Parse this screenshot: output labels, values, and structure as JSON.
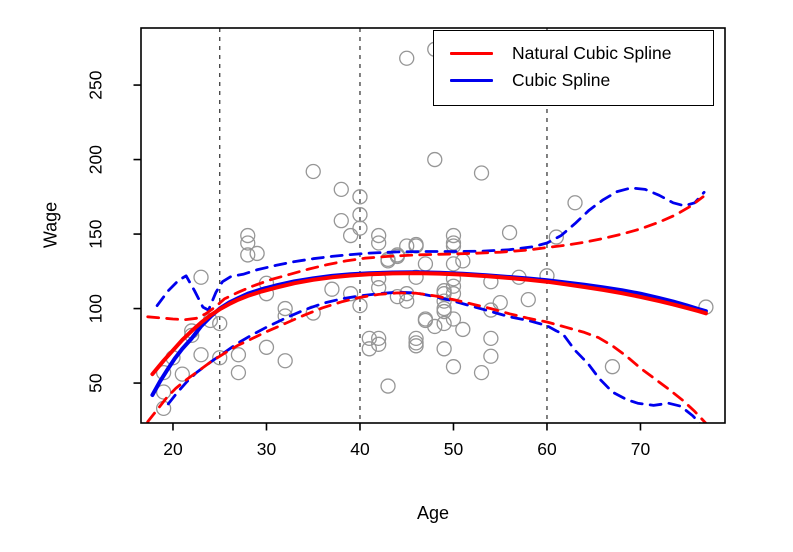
{
  "chart_data": {
    "type": "scatter",
    "title": "",
    "xlabel": "Age",
    "ylabel": "Wage",
    "xlim": [
      16.58,
      79.04
    ],
    "ylim": [
      23.2,
      288.3
    ],
    "x_ticks": [
      20,
      30,
      40,
      50,
      60,
      70
    ],
    "y_ticks": [
      50,
      100,
      150,
      200,
      250
    ],
    "knot_lines_x": [
      25,
      40,
      60
    ],
    "grid": "off",
    "colors": {
      "natural_spline": "#ff0000",
      "cubic_spline": "#0000ee",
      "points": "#969696",
      "knot_lines": "#3c3c3c",
      "axis": "#000000",
      "background": "#ffffff"
    },
    "legend": {
      "position": "top-right",
      "entries": [
        {
          "label": "Natural Cubic Spline",
          "color": "#ff0000"
        },
        {
          "label": "Cubic Spline",
          "color": "#0000ee"
        }
      ]
    },
    "points": [
      [
        35,
        192
      ],
      [
        38,
        180
      ],
      [
        38,
        159
      ],
      [
        28,
        149
      ],
      [
        28,
        144
      ],
      [
        51,
        279
      ],
      [
        48,
        274
      ],
      [
        45,
        268
      ],
      [
        48,
        200
      ],
      [
        53,
        191
      ],
      [
        40,
        175
      ],
      [
        40,
        163
      ],
      [
        40,
        154
      ],
      [
        42,
        149
      ],
      [
        39,
        149
      ],
      [
        50,
        149
      ],
      [
        56,
        151
      ],
      [
        63,
        171
      ],
      [
        61,
        148
      ],
      [
        28,
        136
      ],
      [
        29,
        137
      ],
      [
        23,
        121
      ],
      [
        30,
        117
      ],
      [
        37,
        113
      ],
      [
        30,
        110
      ],
      [
        32,
        100
      ],
      [
        35,
        97
      ],
      [
        24,
        92
      ],
      [
        22,
        85
      ],
      [
        22,
        82
      ],
      [
        25,
        90
      ],
      [
        20,
        67
      ],
      [
        21,
        56
      ],
      [
        19,
        57
      ],
      [
        23,
        69
      ],
      [
        25,
        67
      ],
      [
        27,
        69
      ],
      [
        27,
        57
      ],
      [
        19,
        44
      ],
      [
        19,
        33
      ],
      [
        30,
        74
      ],
      [
        32,
        95
      ],
      [
        32,
        65
      ],
      [
        42,
        144
      ],
      [
        45,
        142
      ],
      [
        46,
        143
      ],
      [
        46,
        142
      ],
      [
        50,
        142
      ],
      [
        50,
        144
      ],
      [
        43,
        132
      ],
      [
        43,
        133
      ],
      [
        44,
        135
      ],
      [
        44,
        136
      ],
      [
        47,
        130
      ],
      [
        50,
        130
      ],
      [
        51,
        132
      ],
      [
        46,
        121
      ],
      [
        42,
        120
      ],
      [
        42,
        114
      ],
      [
        50,
        120
      ],
      [
        50,
        115
      ],
      [
        39,
        110
      ],
      [
        40,
        102
      ],
      [
        44,
        108
      ],
      [
        45,
        110
      ],
      [
        45,
        105
      ],
      [
        49,
        112
      ],
      [
        49,
        110
      ],
      [
        50,
        110
      ],
      [
        49,
        105
      ],
      [
        49,
        100
      ],
      [
        49,
        98
      ],
      [
        47,
        93
      ],
      [
        47,
        92
      ],
      [
        48,
        88
      ],
      [
        49,
        90
      ],
      [
        50,
        93
      ],
      [
        51,
        86
      ],
      [
        41,
        80
      ],
      [
        42,
        80
      ],
      [
        41,
        73
      ],
      [
        42,
        76
      ],
      [
        46,
        77
      ],
      [
        46,
        80
      ],
      [
        46,
        75
      ],
      [
        49,
        73
      ],
      [
        54,
        80
      ],
      [
        50,
        61
      ],
      [
        53,
        57
      ],
      [
        54,
        68
      ],
      [
        43,
        48
      ],
      [
        60,
        122
      ],
      [
        67,
        61
      ],
      [
        77,
        101
      ],
      [
        57,
        121
      ],
      [
        54,
        118
      ],
      [
        58,
        106
      ],
      [
        55,
        104
      ],
      [
        54,
        99
      ]
    ],
    "series": [
      {
        "id": "ci-upper-cubic",
        "name": "Cubic Spline upper CI",
        "style": "dashed",
        "color": "#0000ee",
        "width": 2.8,
        "pts": [
          [
            18.3,
            102
          ],
          [
            19.5,
            112
          ],
          [
            20.6,
            119
          ],
          [
            21.4,
            122
          ],
          [
            22.3,
            112
          ],
          [
            23.2,
            101
          ],
          [
            23.8,
            99
          ],
          [
            24.6,
            111
          ],
          [
            25.3,
            118
          ],
          [
            26.2,
            121.5
          ],
          [
            27.5,
            123
          ],
          [
            29,
            126
          ],
          [
            31,
            129
          ],
          [
            33,
            131.5
          ],
          [
            35,
            133.5
          ],
          [
            37,
            135
          ],
          [
            39,
            136.2
          ],
          [
            41,
            137.2
          ],
          [
            44,
            138
          ],
          [
            47,
            138.3
          ],
          [
            50,
            138.3
          ],
          [
            53,
            138.5
          ],
          [
            56,
            139.5
          ],
          [
            58.5,
            141.5
          ],
          [
            60,
            144
          ],
          [
            61.5,
            149
          ],
          [
            63,
            157
          ],
          [
            64.5,
            166
          ],
          [
            66,
            173
          ],
          [
            67.5,
            178.5
          ],
          [
            69,
            181
          ],
          [
            70.5,
            180
          ],
          [
            72,
            176
          ],
          [
            73.5,
            171
          ],
          [
            74.7,
            169
          ],
          [
            75.8,
            171
          ],
          [
            76.8,
            178
          ]
        ]
      },
      {
        "id": "ci-lower-cubic",
        "name": "Cubic Spline lower CI",
        "style": "dashed",
        "color": "#0000ee",
        "width": 2.8,
        "pts": [
          [
            19.5,
            36
          ],
          [
            20.5,
            44
          ],
          [
            21.5,
            51
          ],
          [
            22.5,
            57
          ],
          [
            24,
            64
          ],
          [
            25.5,
            70.5
          ],
          [
            27,
            77
          ],
          [
            28.5,
            82.5
          ],
          [
            30,
            87.5
          ],
          [
            32,
            93.5
          ],
          [
            34,
            99
          ],
          [
            36,
            103.5
          ],
          [
            38,
            106.5
          ],
          [
            40,
            108.5
          ],
          [
            42,
            110
          ],
          [
            44,
            111
          ],
          [
            46,
            110.5
          ],
          [
            48,
            108
          ],
          [
            50,
            105
          ],
          [
            52,
            101.5
          ],
          [
            54,
            98
          ],
          [
            56,
            94.5
          ],
          [
            58,
            92
          ],
          [
            60,
            88.5
          ],
          [
            61,
            85
          ],
          [
            61.7,
            83
          ],
          [
            63,
            72
          ],
          [
            64.4,
            63
          ],
          [
            65.6,
            53
          ],
          [
            67,
            44
          ],
          [
            68.5,
            39
          ],
          [
            69.7,
            36.5
          ],
          [
            71.4,
            35
          ],
          [
            73,
            36.5
          ],
          [
            74.3,
            34.5
          ],
          [
            75.6,
            28
          ],
          [
            76.6,
            21
          ]
        ]
      },
      {
        "id": "ci-upper-natural",
        "name": "Natural Cubic Spline upper CI",
        "style": "dashed",
        "color": "#ff0000",
        "width": 2.8,
        "pts": [
          [
            17.3,
            94.5
          ],
          [
            18.5,
            93.8
          ],
          [
            20,
            93
          ],
          [
            21.3,
            92.5
          ],
          [
            22.5,
            93.5
          ],
          [
            23.5,
            96.5
          ],
          [
            24.5,
            101
          ],
          [
            25.5,
            106.5
          ],
          [
            27,
            111
          ],
          [
            28.5,
            115
          ],
          [
            30.5,
            119.5
          ],
          [
            32.5,
            123
          ],
          [
            34.5,
            126.5
          ],
          [
            36.5,
            129.5
          ],
          [
            38.5,
            132
          ],
          [
            40.5,
            133.8
          ],
          [
            43,
            135
          ],
          [
            46,
            136
          ],
          [
            49,
            136.5
          ],
          [
            52,
            137
          ],
          [
            55,
            137.8
          ],
          [
            58,
            139.3
          ],
          [
            60,
            141
          ],
          [
            62,
            142.5
          ],
          [
            64,
            144.5
          ],
          [
            66,
            147
          ],
          [
            68,
            150
          ],
          [
            70,
            153.5
          ],
          [
            72,
            158
          ],
          [
            73.8,
            163
          ],
          [
            75.3,
            168.5
          ],
          [
            76.7,
            175
          ]
        ]
      },
      {
        "id": "ci-lower-natural",
        "name": "Natural Cubic Spline lower CI",
        "style": "dashed",
        "color": "#ff0000",
        "width": 2.8,
        "pts": [
          [
            17.3,
            24
          ],
          [
            18.3,
            32
          ],
          [
            19.3,
            40
          ],
          [
            20.3,
            46.5
          ],
          [
            21.5,
            52.5
          ],
          [
            22.8,
            58.5
          ],
          [
            24,
            64
          ],
          [
            25.5,
            70
          ],
          [
            27,
            75.5
          ],
          [
            28.5,
            80
          ],
          [
            30,
            84.5
          ],
          [
            32,
            90
          ],
          [
            34,
            95.5
          ],
          [
            36,
            100.5
          ],
          [
            38,
            104.5
          ],
          [
            40,
            107.5
          ],
          [
            42,
            109.5
          ],
          [
            44,
            110.5
          ],
          [
            46,
            110.3
          ],
          [
            48,
            108.5
          ],
          [
            50,
            106
          ],
          [
            52,
            103
          ],
          [
            54,
            100
          ],
          [
            56,
            96.5
          ],
          [
            58,
            93.5
          ],
          [
            60,
            91
          ],
          [
            62,
            87.5
          ],
          [
            64,
            84
          ],
          [
            65.5,
            80.5
          ],
          [
            67,
            75
          ],
          [
            68.5,
            68
          ],
          [
            70,
            60
          ],
          [
            71.5,
            53
          ],
          [
            73,
            46
          ],
          [
            74.5,
            38.5
          ],
          [
            75.8,
            31
          ],
          [
            77,
            23
          ]
        ]
      },
      {
        "id": "spline-cubic",
        "name": "Cubic Spline",
        "style": "solid",
        "color": "#0000ee",
        "width": 4,
        "pts": [
          [
            17.8,
            42
          ],
          [
            18.6,
            51
          ],
          [
            19.4,
            59
          ],
          [
            20.2,
            66.5
          ],
          [
            21,
            73
          ],
          [
            22,
            80
          ],
          [
            23,
            88
          ],
          [
            24,
            94.5
          ],
          [
            25,
            100
          ],
          [
            26,
            104
          ],
          [
            27,
            107
          ],
          [
            28,
            110
          ],
          [
            29.5,
            113
          ],
          [
            31,
            115.5
          ],
          [
            33,
            118.3
          ],
          [
            35,
            120.3
          ],
          [
            37,
            121.9
          ],
          [
            39,
            123
          ],
          [
            41,
            123.7
          ],
          [
            43.5,
            124.2
          ],
          [
            46,
            124.4
          ],
          [
            48.5,
            124.1
          ],
          [
            51,
            123.4
          ],
          [
            53.5,
            122.4
          ],
          [
            56,
            121.2
          ],
          [
            58,
            120.2
          ],
          [
            60,
            119
          ],
          [
            62,
            117.5
          ],
          [
            64,
            116
          ],
          [
            66,
            114.3
          ],
          [
            68,
            112.3
          ],
          [
            70,
            110
          ],
          [
            72,
            107
          ],
          [
            73.5,
            104.7
          ],
          [
            75,
            102
          ],
          [
            76.2,
            99.7
          ],
          [
            77,
            98.2
          ]
        ]
      },
      {
        "id": "spline-natural",
        "name": "Natural Cubic Spline",
        "style": "solid",
        "color": "#ff0000",
        "width": 4,
        "pts": [
          [
            17.8,
            56
          ],
          [
            19,
            65
          ],
          [
            20,
            72
          ],
          [
            21,
            79
          ],
          [
            22,
            85
          ],
          [
            23,
            90.5
          ],
          [
            24,
            95.5
          ],
          [
            25,
            99.5
          ],
          [
            26,
            103
          ],
          [
            27,
            106
          ],
          [
            28,
            108.5
          ],
          [
            29.5,
            111.5
          ],
          [
            31,
            114
          ],
          [
            33,
            117
          ],
          [
            35,
            119.3
          ],
          [
            37,
            121
          ],
          [
            39,
            122.2
          ],
          [
            41,
            123
          ],
          [
            43.5,
            123.6
          ],
          [
            46,
            123.8
          ],
          [
            48.5,
            123.5
          ],
          [
            51,
            122.8
          ],
          [
            53.5,
            121.8
          ],
          [
            56,
            120.5
          ],
          [
            58,
            119.3
          ],
          [
            60,
            118
          ],
          [
            62,
            116.3
          ],
          [
            64,
            114.5
          ],
          [
            66,
            112.5
          ],
          [
            68,
            110.3
          ],
          [
            70,
            107.8
          ],
          [
            72,
            105
          ],
          [
            73.5,
            102.8
          ],
          [
            75,
            100.3
          ],
          [
            76.2,
            98.3
          ],
          [
            77,
            96.8
          ]
        ]
      }
    ]
  }
}
